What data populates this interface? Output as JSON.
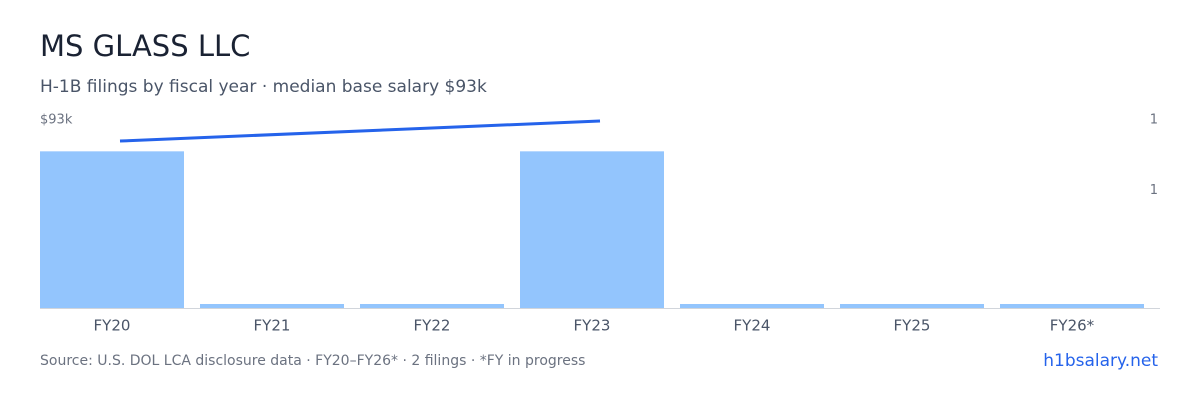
{
  "chart_data": {
    "type": "bar",
    "title": "MS GLASS LLC",
    "subtitle": "H-1B filings by fiscal year · median base salary $93k",
    "categories": [
      "FY20",
      "FY21",
      "FY22",
      "FY23",
      "FY24",
      "FY25",
      "FY26*"
    ],
    "series": [
      {
        "name": "Filings",
        "type": "bar",
        "color": "#93c5fd",
        "axis": "y2",
        "values": [
          1,
          0,
          0,
          1,
          0,
          0,
          0
        ]
      },
      {
        "name": "Median base salary",
        "type": "line",
        "color": "#2563eb",
        "axis": "y",
        "x": [
          "FY20",
          "FY23"
        ],
        "values": [
          82600,
          92500
        ]
      }
    ],
    "ylim": [
      0,
      93000
    ],
    "yticks": [
      {
        "value": 93000,
        "label": "$93k"
      }
    ],
    "y2lim": [
      0,
      1.2
    ],
    "y2ticks": [
      {
        "value": 0.75,
        "label": "1"
      },
      {
        "value": 1.2,
        "label": "1"
      }
    ],
    "grid": false,
    "source": "Source: U.S. DOL LCA disclosure data · FY20–FY26* · 2 filings · *FY in progress",
    "link": "h1bsalary.net"
  }
}
